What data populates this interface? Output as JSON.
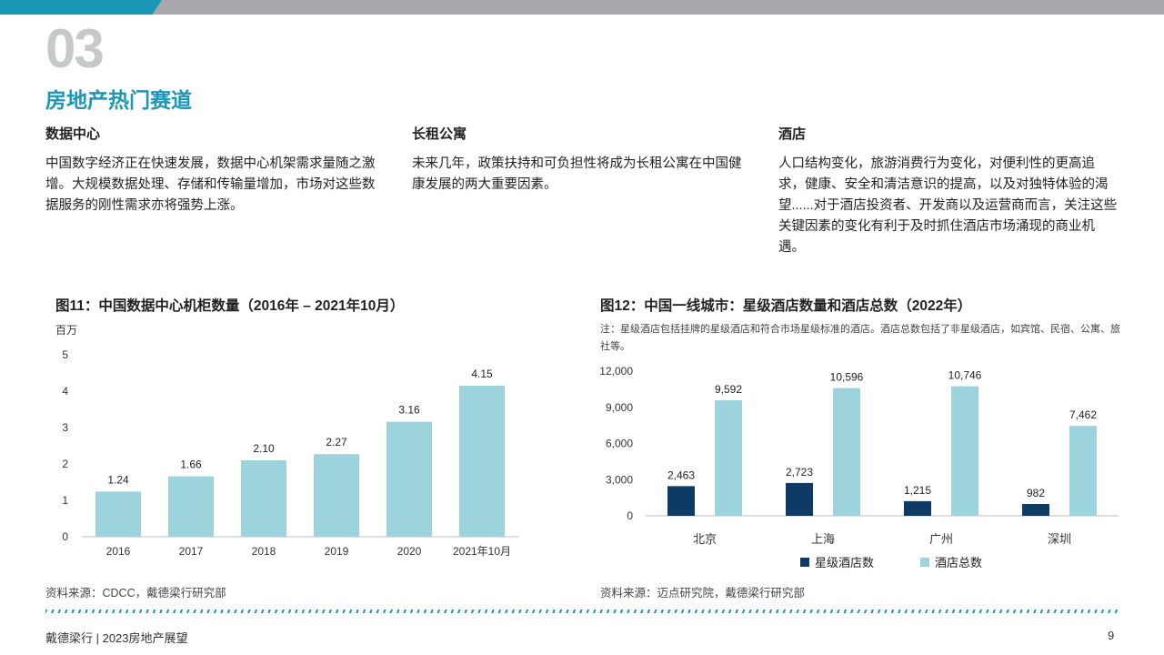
{
  "header": {
    "section_number": "03",
    "section_title": "房地产热门赛道"
  },
  "columns": [
    {
      "title": "数据中心",
      "body": "中国数字经济正在快速发展，数据中心机架需求量随之激增。大规模数据处理、存储和传输量增加，市场对这些数据服务的刚性需求亦将强势上涨。"
    },
    {
      "title": "长租公寓",
      "body": "未来几年，政策扶持和可负担性将成为长租公寓在中国健康发展的两大重要因素。"
    },
    {
      "title": "酒店",
      "body": "人口结构变化，旅游消费行为变化，对便利性的更高追求，健康、安全和清洁意识的提高，以及对独特体验的渴望......对于酒店投资者、开发商以及运营商而言，关注这些关键因素的变化有利于及时抓住酒店市场涌现的商业机遇。"
    }
  ],
  "chart_data": [
    {
      "type": "bar",
      "title": "图11：中国数据中心机柜数量（2016年 – 2021年10月）",
      "ylabel": "百万",
      "categories": [
        "2016",
        "2017",
        "2018",
        "2019",
        "2020",
        "2021年10月"
      ],
      "values": [
        1.24,
        1.66,
        2.1,
        2.27,
        3.16,
        4.15
      ],
      "value_labels": [
        "1.24",
        "1.66",
        "2.10",
        "2.27",
        "3.16",
        "4.15"
      ],
      "ylim": [
        0,
        5
      ],
      "yticks": [
        "0",
        "1",
        "2",
        "3",
        "4",
        "5"
      ],
      "grid": false,
      "color": "#9dd3dd",
      "source": "资料来源：CDCC，戴德梁行研究部"
    },
    {
      "type": "bar",
      "title": "图12：中国一线城市：星级酒店数量和酒店总数（2022年）",
      "note": "注：星级酒店包括挂牌的星级酒店和符合市场星级标准的酒店。酒店总数包括了非星级酒店，如宾馆、民宿、公寓、旅社等。",
      "categories": [
        "北京",
        "上海",
        "广州",
        "深圳"
      ],
      "series": [
        {
          "name": "星级酒店数",
          "values": [
            2463,
            2723,
            1215,
            982
          ],
          "labels": [
            "2,463",
            "2,723",
            "1,215",
            "982"
          ],
          "color": "#0d3b66"
        },
        {
          "name": "酒店总数",
          "values": [
            9592,
            10596,
            10746,
            7462
          ],
          "labels": [
            "9,592",
            "10,596",
            "10,746",
            "7,462"
          ],
          "color": "#9dd3dd"
        }
      ],
      "ylim": [
        0,
        12000
      ],
      "yticks": [
        "0",
        "3,000",
        "6,000",
        "9,000",
        "12,000"
      ],
      "grid": false,
      "legend_position": "bottom",
      "source": "资料来源：迈点研究院，戴德梁行研究部"
    }
  ],
  "footer": {
    "left": "戴德梁行 | 2023房地产展望",
    "page": "9"
  }
}
